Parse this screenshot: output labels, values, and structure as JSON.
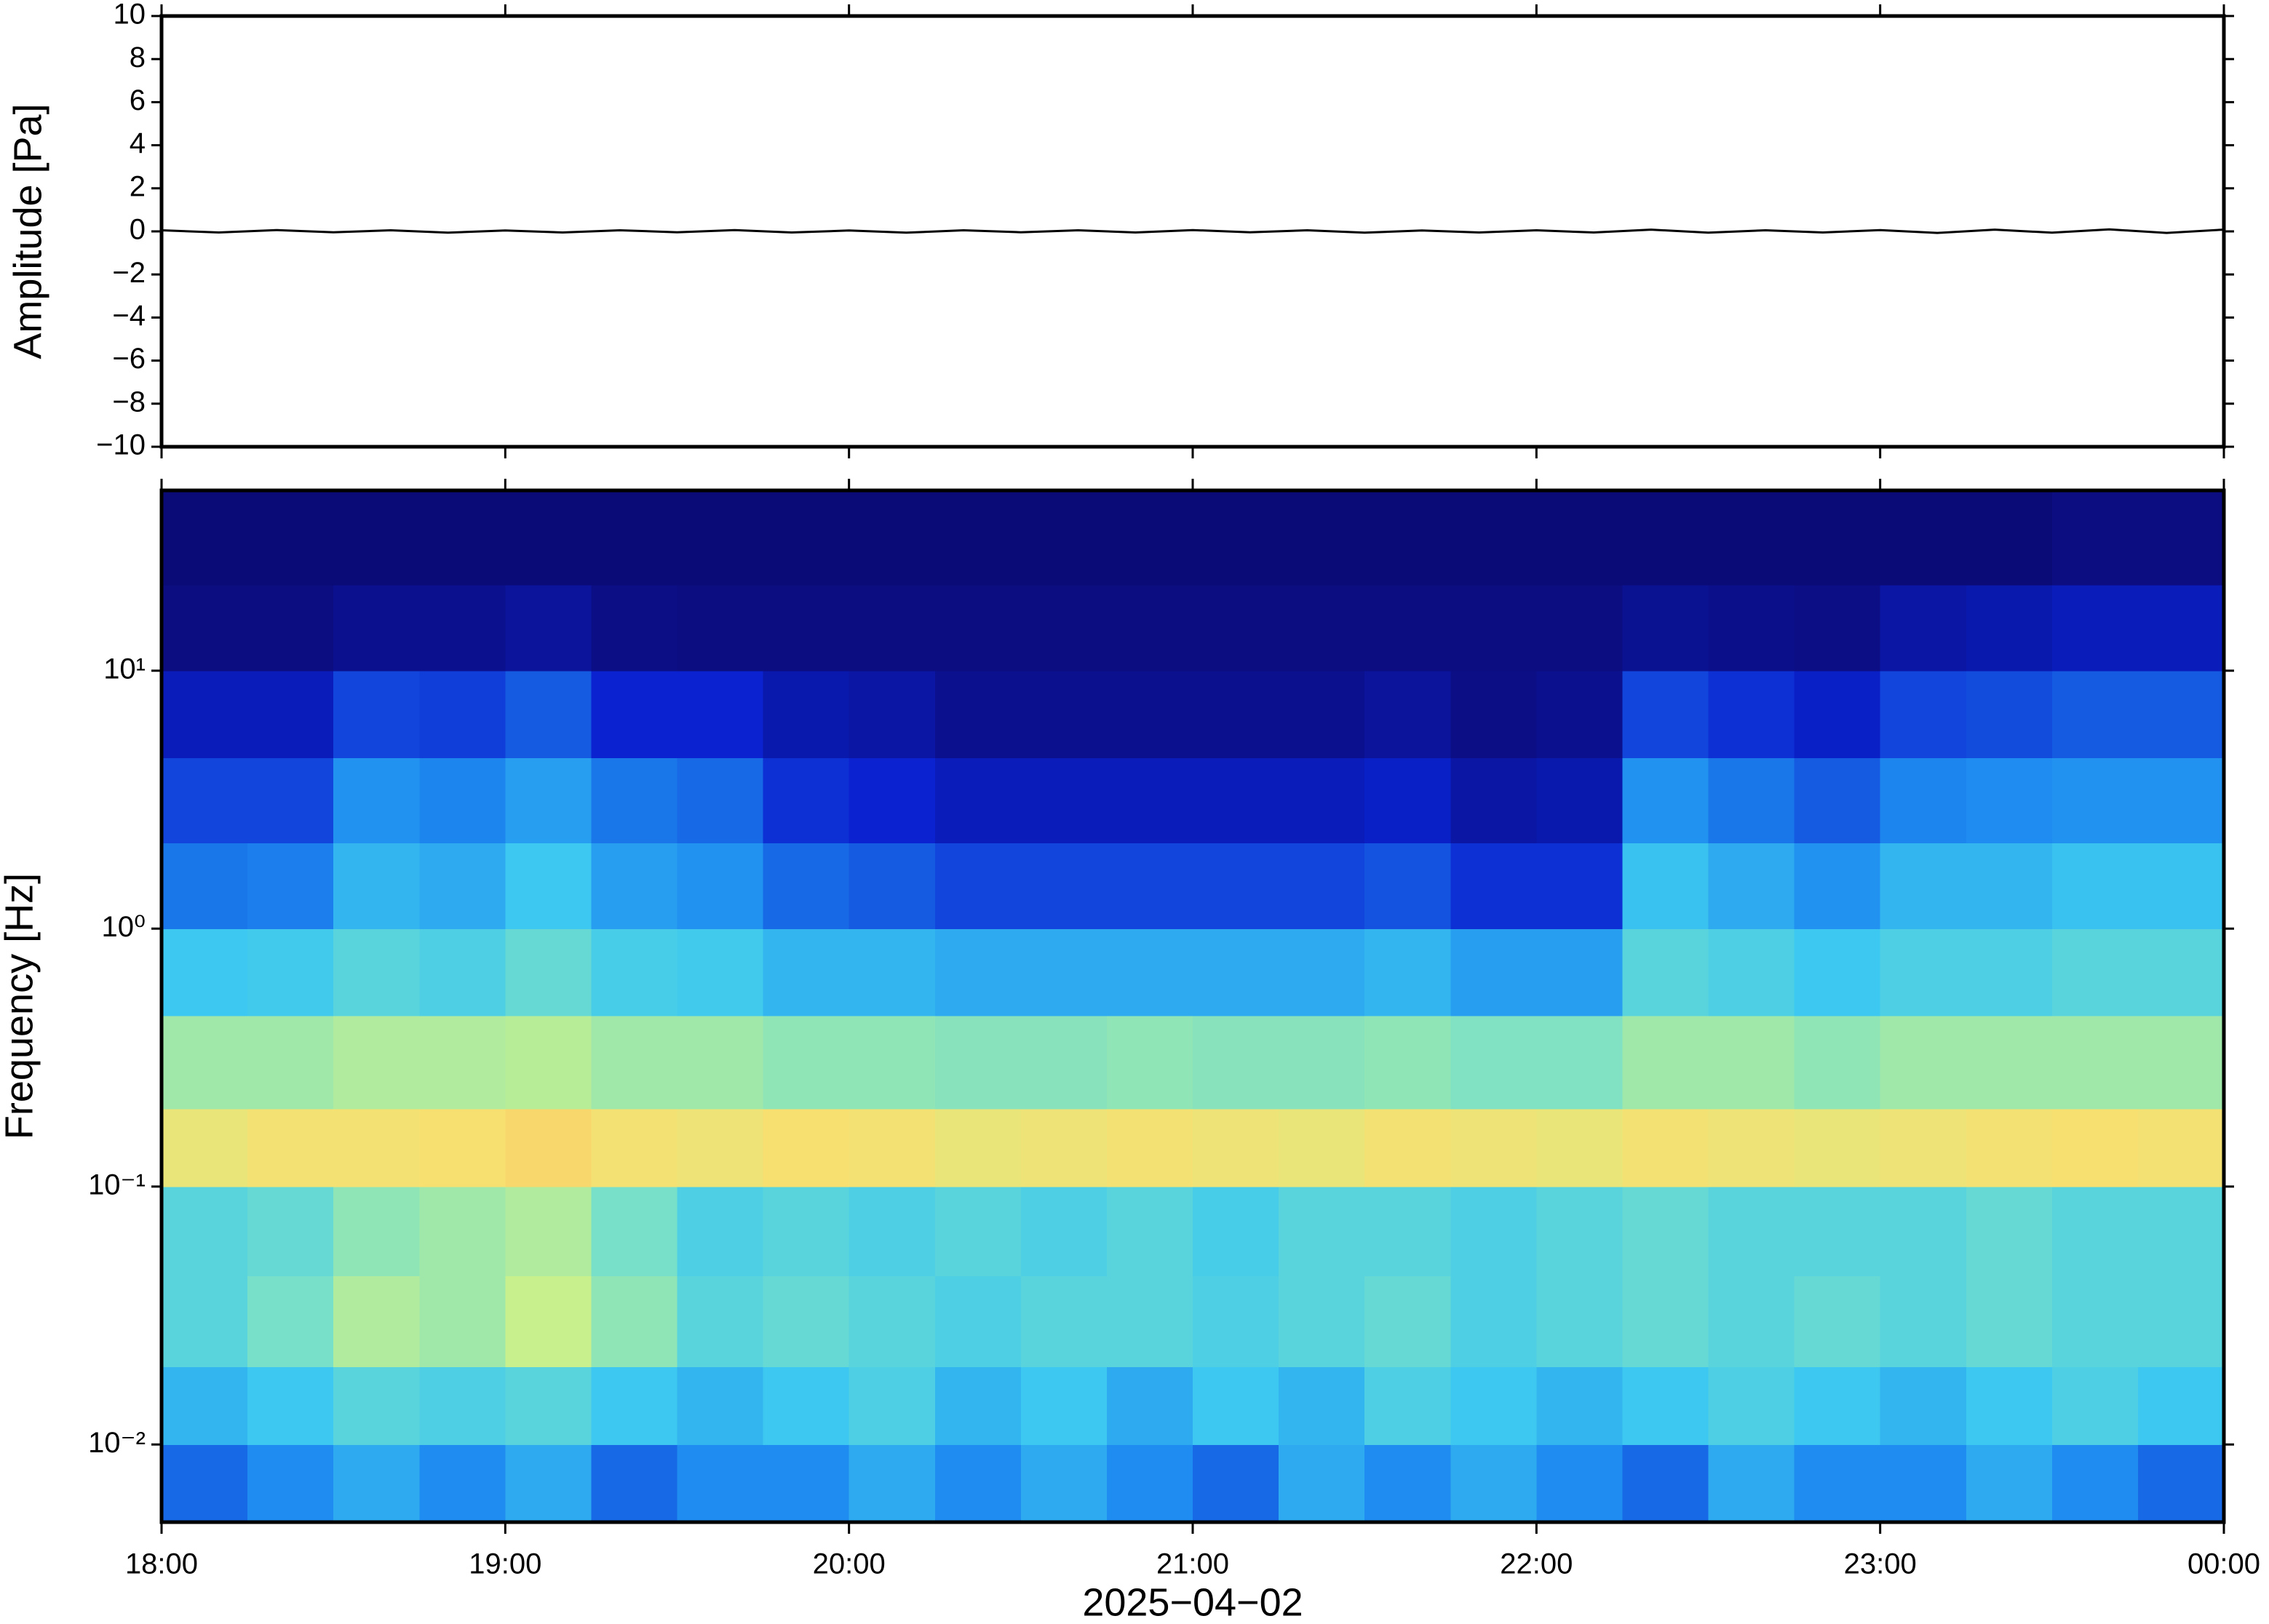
{
  "chart_data": [
    {
      "type": "line",
      "ylabel": "Amplitude [Pa]",
      "color": "#000000",
      "xlim": [
        0,
        360
      ],
      "ylim": [
        -10,
        10
      ],
      "yticks": [
        {
          "value": -10,
          "label": "−10"
        },
        {
          "value": -8,
          "label": "−8"
        },
        {
          "value": -6,
          "label": "−6"
        },
        {
          "value": -4,
          "label": "−4"
        },
        {
          "value": -2,
          "label": "−2"
        },
        0,
        2,
        4,
        6,
        8,
        10
      ],
      "x": [
        0,
        10,
        20,
        30,
        40,
        50,
        60,
        70,
        80,
        90,
        100,
        110,
        120,
        130,
        140,
        150,
        160,
        170,
        180,
        190,
        200,
        210,
        220,
        230,
        240,
        250,
        260,
        270,
        280,
        290,
        300,
        310,
        320,
        330,
        340,
        350,
        360
      ],
      "values": [
        0.05,
        -0.05,
        0.06,
        -0.04,
        0.05,
        -0.06,
        0.04,
        -0.05,
        0.05,
        -0.04,
        0.06,
        -0.05,
        0.04,
        -0.06,
        0.05,
        -0.04,
        0.05,
        -0.05,
        0.06,
        -0.04,
        0.05,
        -0.06,
        0.04,
        -0.05,
        0.05,
        -0.05,
        0.08,
        -0.06,
        0.05,
        -0.05,
        0.06,
        -0.07,
        0.08,
        -0.06,
        0.09,
        -0.07,
        0.08
      ]
    },
    {
      "type": "heatmap",
      "ylabel": "Frequency [Hz]",
      "xlabel": "2025−04−02",
      "log_y": true,
      "xlim": [
        0,
        360
      ],
      "ylim": [
        0.005,
        50
      ],
      "xticks": [
        {
          "value": 0,
          "label": "18:00"
        },
        {
          "value": 60,
          "label": "19:00"
        },
        {
          "value": 120,
          "label": "20:00"
        },
        {
          "value": 180,
          "label": "21:00"
        },
        {
          "value": 240,
          "label": "22:00"
        },
        {
          "value": 300,
          "label": "23:00"
        },
        {
          "value": 360,
          "label": "00:00"
        }
      ],
      "yticks": [
        {
          "value": 0.01,
          "label": "10⁻²"
        },
        {
          "value": 0.1,
          "label": "10⁻¹"
        },
        {
          "value": 1,
          "label": "10⁰"
        },
        {
          "value": 10,
          "label": "10¹"
        }
      ],
      "time_bins": [
        0,
        15,
        30,
        45,
        60,
        75,
        90,
        105,
        120,
        135,
        150,
        165,
        180,
        195,
        210,
        225,
        240,
        255,
        270,
        285,
        300,
        315,
        330,
        345,
        360
      ],
      "freq_bins": [
        0.005,
        0.01,
        0.02,
        0.045,
        0.1,
        0.2,
        0.46,
        1,
        2.15,
        4.6,
        10,
        21.5,
        50
      ],
      "zlim": [
        0,
        1
      ],
      "colormap": [
        {
          "value": 0,
          "color": "#0b0b78"
        },
        {
          "value": 0.2,
          "color": "#0a22d0"
        },
        {
          "value": 0.35,
          "color": "#1e8cf0"
        },
        {
          "value": 0.45,
          "color": "#3cc8f0"
        },
        {
          "value": 0.55,
          "color": "#78e0c8"
        },
        {
          "value": 0.65,
          "color": "#c8f08c"
        },
        {
          "value": 0.75,
          "color": "#f8e070"
        },
        {
          "value": 0.85,
          "color": "#f89050"
        },
        {
          "value": 1,
          "color": "#c83020"
        }
      ],
      "z": [
        [
          0.3,
          0.35,
          0.4,
          0.35,
          0.4,
          0.3,
          0.35,
          0.35,
          0.4,
          0.35,
          0.4,
          0.35,
          0.3,
          0.4,
          0.35,
          0.4,
          0.35,
          0.3,
          0.4,
          0.35,
          0.35,
          0.4,
          0.35,
          0.3
        ],
        [
          0.42,
          0.45,
          0.5,
          0.48,
          0.5,
          0.45,
          0.42,
          0.45,
          0.48,
          0.42,
          0.45,
          0.4,
          0.45,
          0.42,
          0.48,
          0.45,
          0.42,
          0.45,
          0.48,
          0.45,
          0.42,
          0.45,
          0.48,
          0.45
        ],
        [
          0.5,
          0.55,
          0.62,
          0.6,
          0.65,
          0.58,
          0.5,
          0.52,
          0.5,
          0.48,
          0.5,
          0.5,
          0.48,
          0.5,
          0.52,
          0.48,
          0.5,
          0.52,
          0.5,
          0.52,
          0.5,
          0.52,
          0.5,
          0.5
        ],
        [
          0.5,
          0.52,
          0.58,
          0.6,
          0.62,
          0.55,
          0.48,
          0.5,
          0.48,
          0.5,
          0.48,
          0.5,
          0.47,
          0.5,
          0.5,
          0.48,
          0.5,
          0.52,
          0.5,
          0.5,
          0.5,
          0.52,
          0.5,
          0.5
        ],
        [
          0.72,
          0.74,
          0.74,
          0.75,
          0.76,
          0.74,
          0.73,
          0.75,
          0.74,
          0.72,
          0.73,
          0.74,
          0.73,
          0.72,
          0.74,
          0.73,
          0.72,
          0.74,
          0.73,
          0.72,
          0.73,
          0.74,
          0.75,
          0.74
        ],
        [
          0.6,
          0.6,
          0.62,
          0.62,
          0.63,
          0.6,
          0.6,
          0.58,
          0.58,
          0.57,
          0.57,
          0.58,
          0.57,
          0.57,
          0.58,
          0.56,
          0.56,
          0.6,
          0.6,
          0.58,
          0.6,
          0.6,
          0.6,
          0.6
        ],
        [
          0.45,
          0.46,
          0.5,
          0.48,
          0.52,
          0.47,
          0.46,
          0.42,
          0.42,
          0.4,
          0.4,
          0.4,
          0.4,
          0.4,
          0.42,
          0.38,
          0.38,
          0.5,
          0.48,
          0.45,
          0.48,
          0.48,
          0.5,
          0.5
        ],
        [
          0.32,
          0.33,
          0.42,
          0.4,
          0.45,
          0.38,
          0.36,
          0.3,
          0.28,
          0.25,
          0.25,
          0.25,
          0.25,
          0.25,
          0.27,
          0.22,
          0.22,
          0.44,
          0.4,
          0.36,
          0.42,
          0.42,
          0.44,
          0.44
        ],
        [
          0.25,
          0.25,
          0.36,
          0.34,
          0.38,
          0.32,
          0.3,
          0.22,
          0.2,
          0.15,
          0.15,
          0.15,
          0.15,
          0.15,
          0.18,
          0.1,
          0.12,
          0.36,
          0.32,
          0.28,
          0.34,
          0.35,
          0.36,
          0.36
        ],
        [
          0.15,
          0.15,
          0.25,
          0.24,
          0.28,
          0.2,
          0.2,
          0.12,
          0.1,
          0.05,
          0.05,
          0.05,
          0.05,
          0.05,
          0.08,
          0.03,
          0.05,
          0.25,
          0.22,
          0.18,
          0.25,
          0.26,
          0.28,
          0.28
        ],
        [
          0.02,
          0.02,
          0.05,
          0.05,
          0.08,
          0.03,
          0.02,
          0.02,
          0.02,
          0.02,
          0.02,
          0.02,
          0.02,
          0.02,
          0.02,
          0.02,
          0.02,
          0.06,
          0.04,
          0.03,
          0.1,
          0.12,
          0.15,
          0.15
        ],
        [
          0,
          0,
          0,
          0,
          0,
          0,
          0,
          0,
          0,
          0,
          0,
          0,
          0,
          0,
          0,
          0,
          0,
          0,
          0,
          0,
          0,
          0,
          0.02,
          0.02
        ]
      ]
    }
  ]
}
